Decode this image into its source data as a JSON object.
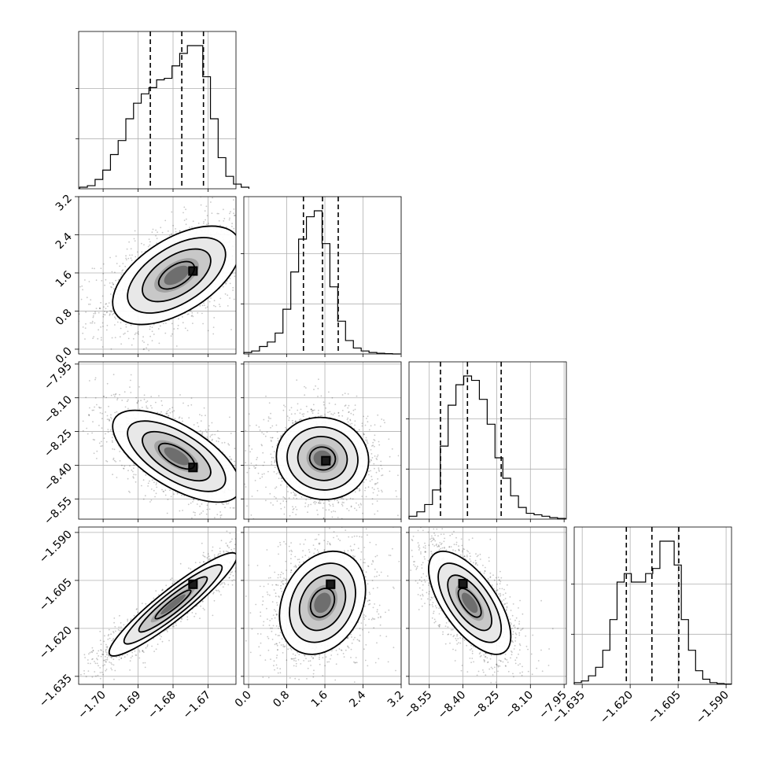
{
  "chart_data": {
    "type": "corner",
    "parameters": [
      {
        "id": "p0",
        "range": [
          -1.707,
          -1.662
        ],
        "ticks": [
          -1.7,
          -1.69,
          -1.68,
          -1.67
        ],
        "tick_labels": [
          "−1.70",
          "−1.69",
          "−1.68",
          "−1.67"
        ],
        "quantiles": [
          -1.6865,
          -1.6775,
          -1.6713
        ],
        "hist": {
          "start": -1.7067,
          "bin_width": 0.0022,
          "counts": [
            0.01,
            0.02,
            0.06,
            0.12,
            0.22,
            0.31,
            0.45,
            0.55,
            0.61,
            0.65,
            0.7,
            0.71,
            0.79,
            0.87,
            0.92,
            0.92,
            0.72,
            0.45,
            0.2,
            0.08,
            0.03,
            0.01
          ]
        }
      },
      {
        "id": "p1",
        "range": [
          -0.1,
          3.2
        ],
        "ticks": [
          0.0,
          0.8,
          1.6,
          2.4,
          3.2
        ],
        "tick_labels": [
          "0.0",
          "0.8",
          "1.6",
          "2.4",
          "3.2"
        ],
        "quantiles": [
          1.15,
          1.55,
          1.88
        ],
        "hist": {
          "start": -0.1,
          "bin_width": 0.1641,
          "counts": [
            0.01,
            0.02,
            0.05,
            0.08,
            0.14,
            0.3,
            0.55,
            0.77,
            0.92,
            0.96,
            0.74,
            0.45,
            0.22,
            0.09,
            0.04,
            0.02,
            0.01,
            0.005,
            0.002,
            0.0
          ]
        }
      },
      {
        "id": "p2",
        "range": [
          -8.64,
          -7.94
        ],
        "ticks": [
          -8.55,
          -8.4,
          -8.25,
          -8.1,
          -7.95
        ],
        "tick_labels": [
          "−8.55",
          "−8.40",
          "−8.25",
          "−8.10",
          "−7.95"
        ],
        "quantiles": [
          -8.5,
          -8.38,
          -8.23
        ],
        "hist": {
          "start": -8.64,
          "bin_width": 0.03478,
          "counts": [
            0.02,
            0.05,
            0.1,
            0.2,
            0.5,
            0.78,
            0.92,
            0.98,
            0.95,
            0.82,
            0.65,
            0.42,
            0.28,
            0.16,
            0.08,
            0.04,
            0.03,
            0.02,
            0.01,
            0.005
          ]
        }
      },
      {
        "id": "p3",
        "range": [
          -1.6375,
          -1.5883
        ],
        "ticks": [
          -1.635,
          -1.62,
          -1.605,
          -1.59
        ],
        "tick_labels": [
          "−1.635",
          "−1.620",
          "−1.605",
          "−1.590"
        ],
        "quantiles": [
          -1.6212,
          -1.6132,
          -1.6048
        ],
        "hist": {
          "start": -1.6375,
          "bin_width": 0.002233,
          "counts": [
            0.01,
            0.02,
            0.05,
            0.1,
            0.2,
            0.38,
            0.6,
            0.65,
            0.6,
            0.6,
            0.65,
            0.68,
            0.84,
            0.84,
            0.7,
            0.38,
            0.2,
            0.08,
            0.03,
            0.01,
            0.005,
            0.002
          ]
        }
      }
    ],
    "pairs": [
      {
        "x": "p0",
        "y": "p1",
        "center": [
          -1.679,
          1.55
        ],
        "corr": 0.55,
        "sd": [
          0.0085,
          0.48
        ],
        "peak": [
          -1.6743,
          1.64
        ]
      },
      {
        "x": "p0",
        "y": "p2",
        "center": [
          -1.679,
          -8.36
        ],
        "corr": -0.65,
        "sd": [
          0.0085,
          0.095
        ],
        "peak": [
          -1.6743,
          -8.41
        ]
      },
      {
        "x": "p1",
        "y": "p2",
        "center": [
          1.55,
          -8.37
        ],
        "corr": -0.05,
        "sd": [
          0.45,
          0.085
        ],
        "peak": [
          1.62,
          -8.38
        ]
      },
      {
        "x": "p0",
        "y": "p3",
        "center": [
          -1.68,
          -1.6125
        ],
        "corr": 0.93,
        "sd": [
          0.0085,
          0.0075
        ],
        "peak": [
          -1.6743,
          -1.6062
        ]
      },
      {
        "x": "p1",
        "y": "p3",
        "center": [
          1.55,
          -1.612
        ],
        "corr": 0.25,
        "sd": [
          0.42,
          0.0075
        ],
        "peak": [
          1.72,
          -1.6062
        ]
      },
      {
        "x": "p2",
        "y": "p3",
        "center": [
          -8.37,
          -1.612
        ],
        "corr": -0.65,
        "sd": [
          0.085,
          0.0075
        ],
        "peak": [
          -8.4,
          -1.606
        ]
      }
    ]
  }
}
